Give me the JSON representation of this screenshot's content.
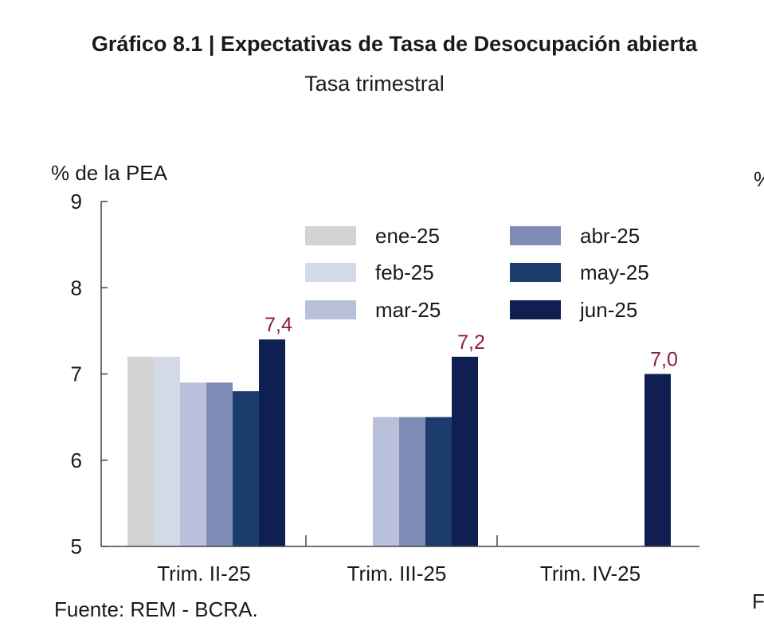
{
  "title": "Gráfico 8.1 | Expectativas de Tasa de Desocupación abierta",
  "subtitle": "Tasa trimestral",
  "source": "Fuente: REM - BCRA.",
  "edge_fragments": {
    "top_right": "%",
    "bottom_right": "F"
  },
  "colors": {
    "ene-25": "#d3d3d3",
    "feb-25": "#d4d9ea",
    "mar-25": "#b9c1da",
    "abr-25": "#7f8db6",
    "may-25": "#1d3c6e",
    "jun-25": "#0f1f52",
    "label": "#8b1e3f",
    "axis": "#444444"
  },
  "chart_data": {
    "type": "bar",
    "title": "Gráfico 8.1 | Expectativas de Tasa de Desocupación abierta",
    "subtitle": "Tasa trimestral",
    "ylabel": "% de la PEA",
    "xlabel": "",
    "ylim": [
      5,
      9
    ],
    "yticks": [
      "5",
      "6",
      "7",
      "8",
      "9"
    ],
    "categories": [
      "Trim. II-25",
      "Trim. III-25",
      "Trim. IV-25"
    ],
    "legend_position": "top-right",
    "series": [
      {
        "name": "ene-25",
        "values": [
          7.2,
          null,
          null
        ]
      },
      {
        "name": "feb-25",
        "values": [
          7.2,
          null,
          null
        ]
      },
      {
        "name": "mar-25",
        "values": [
          6.9,
          6.5,
          null
        ]
      },
      {
        "name": "abr-25",
        "values": [
          6.9,
          6.5,
          null
        ]
      },
      {
        "name": "may-25",
        "values": [
          6.8,
          6.5,
          null
        ]
      },
      {
        "name": "jun-25",
        "values": [
          7.4,
          7.2,
          7.0
        ]
      }
    ],
    "data_labels": [
      "7,4",
      "7,2",
      "7,0"
    ]
  }
}
